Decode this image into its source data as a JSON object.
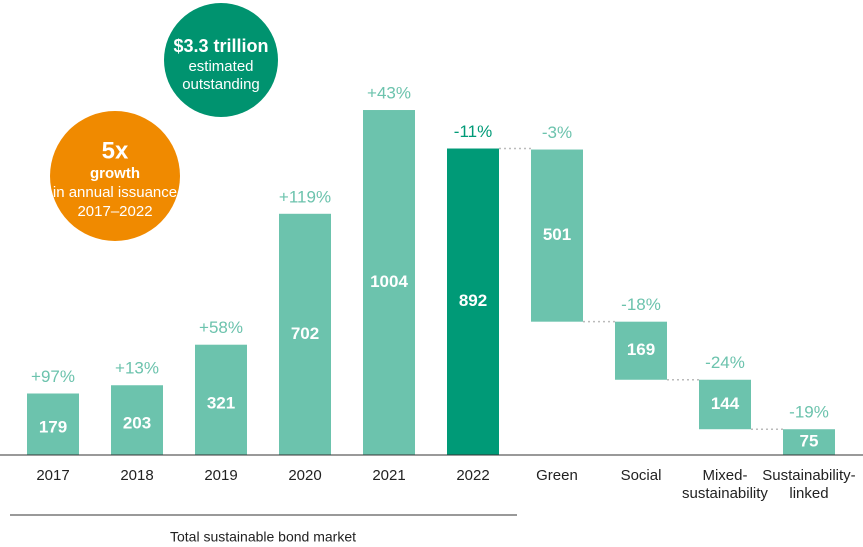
{
  "chart_data": {
    "type": "bar",
    "categories": [
      "2017",
      "2018",
      "2019",
      "2020",
      "2021",
      "2022",
      "Green",
      "Social",
      "Mixed-\nsustainability",
      "Sustainability-\nlinked"
    ],
    "values": [
      179,
      203,
      321,
      702,
      1004,
      892,
      501,
      169,
      144,
      75
    ],
    "change_labels": [
      "+97%",
      "+13%",
      "+58%",
      "+119%",
      "+43%",
      "-11%",
      "-3%",
      "-18%",
      "-24%",
      "-19%"
    ],
    "colors": [
      "#6cc3ad",
      "#6cc3ad",
      "#6cc3ad",
      "#6cc3ad",
      "#6cc3ad",
      "#009a77",
      "#6cc3ad",
      "#6cc3ad",
      "#6cc3ad",
      "#6cc3ad"
    ],
    "ylim": [
      0,
      1100
    ],
    "group_label": "Total sustainable bond market",
    "callouts": [
      {
        "lines": [
          "$3.3 trillion",
          "estimated",
          "outstanding"
        ],
        "color": "#00936f"
      },
      {
        "lines": [
          "5x",
          "growth",
          "in annual issuance",
          "2017–2022"
        ],
        "color": "#f08a00"
      }
    ]
  }
}
